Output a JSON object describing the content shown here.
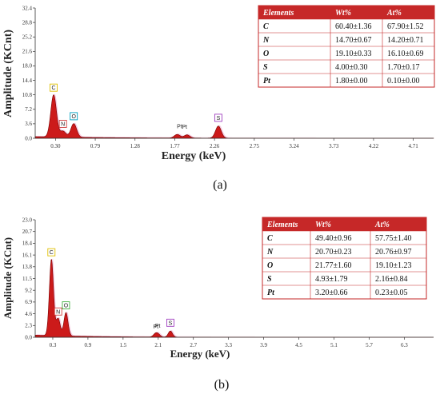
{
  "chart_data": [
    {
      "type": "area",
      "caption": "(a)",
      "xlabel": "Energy (keV)",
      "ylabel": "Amplitude (KCnt)",
      "xlim": [
        0.05,
        4.96
      ],
      "ylim": [
        0,
        32.4
      ],
      "x_ticks": [
        "0.30",
        "0.79",
        "1.28",
        "1.77",
        "2.26",
        "2.75",
        "3.24",
        "3.73",
        "4.22",
        "4.71"
      ],
      "y_ticks": [
        "0.0",
        "3.6",
        "7.2",
        "10.8",
        "14.4",
        "18.0",
        "21.6",
        "25.2",
        "28.8",
        "32.4"
      ],
      "peaks": [
        {
          "label": "C",
          "x": 0.277,
          "y": 10.5,
          "color": "#e0c000"
        },
        {
          "label": "N",
          "x": 0.392,
          "y": 1.5,
          "color": "#d04040"
        },
        {
          "label": "O",
          "x": 0.525,
          "y": 3.4,
          "color": "#00a0c0"
        },
        {
          "label": "Pt",
          "x": 1.8,
          "y": 0.9,
          "color": ""
        },
        {
          "label": "Pt",
          "x": 1.92,
          "y": 0.8,
          "color": ""
        },
        {
          "label": "S",
          "x": 2.307,
          "y": 3.0,
          "color": "#a040c0"
        }
      ],
      "table": {
        "headers": [
          "Elements",
          "Wt%",
          "At%"
        ],
        "rows": [
          [
            "C",
            "60.40±1.36",
            "67.90±1.52"
          ],
          [
            "N",
            "14.70±0.67",
            "14.20±0.71"
          ],
          [
            "O",
            "19.10±0.33",
            "16.10±0.69"
          ],
          [
            "S",
            "4.00±0.30",
            "1.70±0.17"
          ],
          [
            "Pt",
            "1.80±0.00",
            "0.10±0.00"
          ]
        ]
      }
    },
    {
      "type": "area",
      "caption": "(b)",
      "xlabel": "Energy (keV)",
      "ylabel": "Amplitude (KCnt)",
      "xlim": [
        0.0,
        6.8
      ],
      "ylim": [
        0,
        23.0
      ],
      "x_ticks": [
        "0.3",
        "0.9",
        "1.5",
        "2.1",
        "2.7",
        "3.3",
        "3.9",
        "4.5",
        "5.1",
        "5.7",
        "6.3"
      ],
      "y_ticks": [
        "0.0",
        "2.3",
        "4.6",
        "6.9",
        "9.2",
        "11.5",
        "13.8",
        "16.1",
        "18.4",
        "20.7",
        "23.0"
      ],
      "peaks": [
        {
          "label": "C",
          "x": 0.277,
          "y": 15.0,
          "color": "#e0c000"
        },
        {
          "label": "N",
          "x": 0.392,
          "y": 3.4,
          "color": "#d04040"
        },
        {
          "label": "O",
          "x": 0.525,
          "y": 4.6,
          "color": "#40b040"
        },
        {
          "label": "Pt",
          "x": 2.05,
          "y": 0.6,
          "color": ""
        },
        {
          "label": "Pt",
          "x": 2.1,
          "y": 0.5,
          "color": ""
        },
        {
          "label": "S",
          "x": 2.307,
          "y": 1.2,
          "color": "#a040c0"
        }
      ],
      "table": {
        "headers": [
          "Elements",
          "Wt%",
          "At%"
        ],
        "rows": [
          [
            "C",
            "49.40±0.96",
            "57.75±1.40"
          ],
          [
            "N",
            "20.70±0.23",
            "20.76±0.97"
          ],
          [
            "O",
            "21.77±1.60",
            "19.10±1.23"
          ],
          [
            "S",
            "4.93±1.79",
            "2.16±0.84"
          ],
          [
            "Pt",
            "3.20±0.66",
            "0.23±0.05"
          ]
        ]
      }
    }
  ],
  "colors": {
    "spectrum_fill": "#cc1a1a",
    "spectrum_edge": "#7a0000",
    "spectrum_halo": "#f2a0c8",
    "table_header_bg": "#c62828",
    "table_border": "#c62828"
  }
}
